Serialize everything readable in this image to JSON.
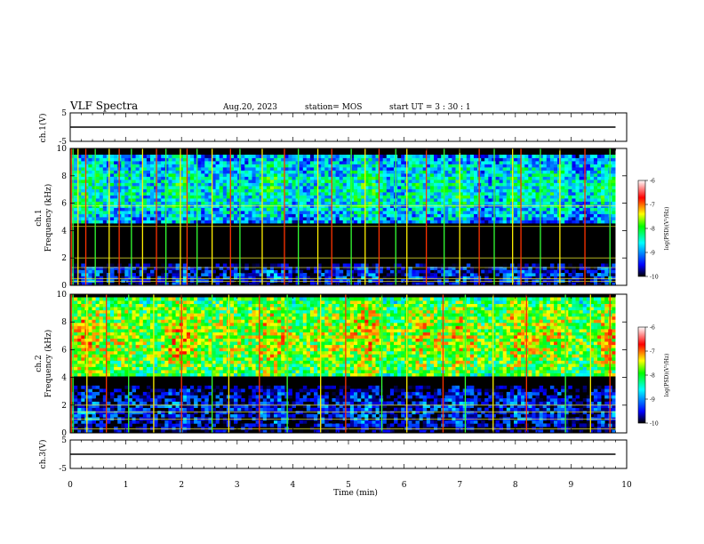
{
  "header": {
    "title": "VLF Spectra",
    "date": "Aug.20, 2023",
    "station": "station= MOS",
    "start_ut": "start  UT =   3  : 30 : 1"
  },
  "chart_data": [
    {
      "type": "line",
      "panel": "ch1-waveform",
      "ylabel": "ch.1(V)",
      "ylim": [
        -5,
        5
      ],
      "yticks": [
        "5",
        "-5"
      ],
      "x": [
        0,
        9.8
      ],
      "values": [
        0,
        0
      ],
      "xlim": [
        0,
        10
      ]
    },
    {
      "type": "heatmap",
      "panel": "ch1-spectrogram",
      "ylabel": "ch.1\nFrequency (kHz)",
      "ylim": [
        0,
        10
      ],
      "yticks": [
        "0",
        "2",
        "4",
        "6",
        "8",
        "10"
      ],
      "xlim": [
        0,
        10
      ],
      "color_scale": {
        "label": "log(PSD)(V²/Hz)",
        "range": [
          -10,
          -6
        ],
        "ticks": [
          "-6",
          "-7",
          "-8",
          "-9",
          "-10"
        ],
        "colors": [
          "#000000",
          "#0000ff",
          "#00ffff",
          "#00ff00",
          "#ffff00",
          "#ff0000",
          "#ffffff"
        ]
      },
      "bands_khz": [
        {
          "from": 0,
          "to": 1.5,
          "level": -9.2
        },
        {
          "from": 4.5,
          "to": 9.5,
          "level": -8.2
        }
      ],
      "sferic_min": [
        0.02,
        0.05,
        0.14,
        0.28,
        0.45,
        0.7,
        0.88,
        1.1,
        1.3,
        1.55,
        1.72,
        1.98,
        2.1,
        2.28,
        2.55,
        2.88,
        3.05,
        3.45,
        3.85,
        4.1,
        4.45,
        4.7,
        5.05,
        5.3,
        5.55,
        5.85,
        6.05,
        6.4,
        6.72,
        7.0,
        7.35,
        7.62,
        7.95,
        8.1,
        8.45,
        8.8,
        9.25,
        9.7
      ],
      "line_khz": [
        0.3,
        0.5,
        1.3,
        2.0,
        4.3,
        5.8
      ]
    },
    {
      "type": "heatmap",
      "panel": "ch2-spectrogram",
      "ylabel": "ch.2\nFrequency (kHz)",
      "ylim": [
        0,
        10
      ],
      "yticks": [
        "0",
        "2",
        "4",
        "6",
        "8",
        "10"
      ],
      "xlim": [
        0,
        10
      ],
      "color_scale": {
        "label": "log(PSD)(V²/Hz)",
        "range": [
          -10,
          -6
        ],
        "ticks": [
          "-6",
          "-7",
          "-8",
          "-9",
          "-10"
        ],
        "colors": [
          "#000000",
          "#0000ff",
          "#00ffff",
          "#00ff00",
          "#ffff00",
          "#ff0000",
          "#ffffff"
        ]
      },
      "bands_khz": [
        {
          "from": 0,
          "to": 3.5,
          "level": -9.2
        },
        {
          "from": 4,
          "to": 9.8,
          "level": -7.3
        }
      ],
      "sferic_min": [
        0.02,
        0.05,
        0.3,
        0.65,
        1.05,
        1.5,
        2.0,
        2.55,
        2.85,
        3.4,
        3.9,
        4.5,
        4.95,
        5.6,
        6.05,
        6.7,
        7.1,
        7.6,
        8.2,
        8.9,
        9.35,
        9.7
      ],
      "line_khz": [
        0.3,
        1.0,
        1.5,
        2.0
      ]
    },
    {
      "type": "line",
      "panel": "ch3-waveform",
      "ylabel": "ch.3(V)",
      "ylim": [
        -5,
        5
      ],
      "yticks": [
        "5",
        "-5"
      ],
      "x": [
        0,
        9.8
      ],
      "values": [
        0,
        0
      ],
      "xlim": [
        0,
        10
      ]
    }
  ],
  "x_axis": {
    "label": "Time  (min)",
    "ticks": [
      "0",
      "1",
      "2",
      "3",
      "4",
      "5",
      "6",
      "7",
      "8",
      "9",
      "10"
    ]
  }
}
